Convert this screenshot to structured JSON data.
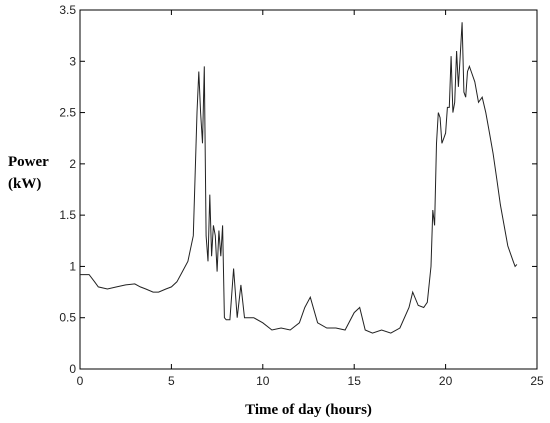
{
  "chart_data": {
    "type": "line",
    "xlabel": "Time of day (hours)",
    "ylabel_lines": [
      "Power",
      "(kW)"
    ],
    "xlim": [
      0,
      25
    ],
    "ylim": [
      0,
      3.5
    ],
    "xticks": [
      "0",
      "5",
      "10",
      "15",
      "20",
      "25"
    ],
    "yticks": [
      "0",
      "0.5",
      "1",
      "1.5",
      "2",
      "2.5",
      "3",
      "3.5"
    ],
    "grid": false,
    "line_color": "#222222",
    "series": [
      {
        "x": [
          0,
          0.5,
          0.8,
          1.0,
          1.5,
          2.0,
          2.5,
          3.0,
          3.3,
          3.6,
          4.0,
          4.3,
          4.7,
          5.0,
          5.3,
          5.6,
          5.9,
          6.2,
          6.4,
          6.5,
          6.6,
          6.7,
          6.8,
          6.9,
          7.0,
          7.1,
          7.2,
          7.3,
          7.4,
          7.5,
          7.6,
          7.7,
          7.8,
          7.9,
          8.0,
          8.2,
          8.4,
          8.6,
          8.8,
          9.0,
          9.5,
          10.0,
          10.5,
          11.0,
          11.5,
          12.0,
          12.3,
          12.6,
          13.0,
          13.5,
          14.0,
          14.5,
          15.0,
          15.3,
          15.6,
          16.0,
          16.5,
          17.0,
          17.5,
          18.0,
          18.2,
          18.5,
          18.8,
          19.0,
          19.2,
          19.3,
          19.4,
          19.5,
          19.6,
          19.7,
          19.8,
          19.9,
          20.0,
          20.1,
          20.2,
          20.3,
          20.4,
          20.5,
          20.6,
          20.7,
          20.8,
          20.9,
          21.0,
          21.1,
          21.2,
          21.3,
          21.4,
          21.6,
          21.8,
          22.0,
          22.2,
          22.4,
          22.6,
          22.8,
          23.0,
          23.2,
          23.4,
          23.6,
          23.7,
          23.8,
          23.9
        ],
        "y": [
          0.92,
          0.92,
          0.85,
          0.8,
          0.78,
          0.8,
          0.82,
          0.83,
          0.8,
          0.78,
          0.75,
          0.75,
          0.78,
          0.8,
          0.85,
          0.95,
          1.05,
          1.3,
          2.5,
          2.9,
          2.5,
          2.2,
          2.95,
          1.3,
          1.05,
          1.7,
          1.1,
          1.4,
          1.3,
          0.95,
          1.35,
          1.1,
          1.4,
          0.5,
          0.48,
          0.48,
          0.98,
          0.5,
          0.82,
          0.5,
          0.5,
          0.45,
          0.38,
          0.4,
          0.38,
          0.45,
          0.6,
          0.7,
          0.45,
          0.4,
          0.4,
          0.38,
          0.55,
          0.6,
          0.38,
          0.35,
          0.38,
          0.35,
          0.4,
          0.6,
          0.75,
          0.62,
          0.6,
          0.65,
          1.0,
          1.55,
          1.4,
          2.2,
          2.5,
          2.45,
          2.2,
          2.25,
          2.3,
          2.55,
          2.55,
          3.05,
          2.5,
          2.6,
          3.1,
          2.75,
          3.05,
          3.38,
          2.7,
          2.65,
          2.9,
          2.95,
          2.9,
          2.8,
          2.6,
          2.65,
          2.5,
          2.3,
          2.1,
          1.85,
          1.6,
          1.4,
          1.2,
          1.1,
          1.05,
          1.0,
          1.02
        ]
      }
    ]
  }
}
